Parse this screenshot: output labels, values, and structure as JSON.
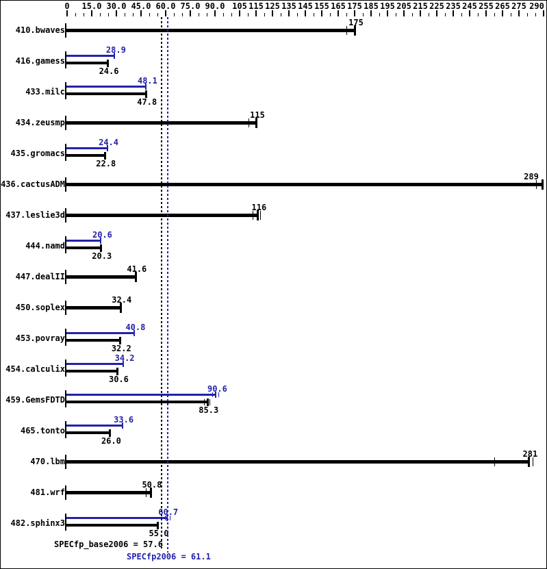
{
  "chart_data": {
    "type": "bar",
    "orientation": "horizontal",
    "title": "",
    "xlabel": "",
    "ylabel": "",
    "xlim": [
      0,
      290
    ],
    "grid": false,
    "colors": {
      "base": "#000000",
      "peak": "#2222aa",
      "background": "#ffffff"
    },
    "axis": {
      "minor_step": 5,
      "ticks": [
        {
          "value": 0,
          "label": "0"
        },
        {
          "value": 15,
          "label": "15.0"
        },
        {
          "value": 30,
          "label": "30.0"
        },
        {
          "value": 45,
          "label": "45.0"
        },
        {
          "value": 60,
          "label": "60.0"
        },
        {
          "value": 75,
          "label": "75.0"
        },
        {
          "value": 90,
          "label": "90.0"
        },
        {
          "value": 105,
          "label": "105"
        },
        {
          "value": 115,
          "label": "115"
        },
        {
          "value": 125,
          "label": "125"
        },
        {
          "value": 135,
          "label": "135"
        },
        {
          "value": 145,
          "label": "145"
        },
        {
          "value": 155,
          "label": "155"
        },
        {
          "value": 165,
          "label": "165"
        },
        {
          "value": 175,
          "label": "175"
        },
        {
          "value": 185,
          "label": "185"
        },
        {
          "value": 195,
          "label": "195"
        },
        {
          "value": 205,
          "label": "205"
        },
        {
          "value": 215,
          "label": "215"
        },
        {
          "value": 225,
          "label": "225"
        },
        {
          "value": 235,
          "label": "235"
        },
        {
          "value": 245,
          "label": "245"
        },
        {
          "value": 255,
          "label": "255"
        },
        {
          "value": 265,
          "label": "265"
        },
        {
          "value": 275,
          "label": "275"
        },
        {
          "value": 290,
          "label": "290"
        }
      ]
    },
    "benchmarks": [
      {
        "name": "410.bwaves",
        "peak": null,
        "base": {
          "value": 175,
          "label": "175",
          "marks": [
            170
          ]
        }
      },
      {
        "name": "416.gamess",
        "peak": {
          "value": 28.9,
          "label": "28.9",
          "marks": []
        },
        "base": {
          "value": 24.6,
          "label": "24.6",
          "marks": []
        }
      },
      {
        "name": "433.milc",
        "peak": {
          "value": 48.1,
          "label": "48.1",
          "marks": []
        },
        "base": {
          "value": 47.8,
          "label": "47.8",
          "marks": []
        }
      },
      {
        "name": "434.zeusmp",
        "peak": null,
        "base": {
          "value": 115,
          "label": "115",
          "marks": [
            110.5
          ]
        }
      },
      {
        "name": "435.gromacs",
        "peak": {
          "value": 24.4,
          "label": "24.4",
          "marks": []
        },
        "base": {
          "value": 22.8,
          "label": "22.8",
          "marks": []
        }
      },
      {
        "name": "436.cactusADM",
        "peak": null,
        "base": {
          "value": 289,
          "label": "289",
          "marks": [
            285.5
          ]
        }
      },
      {
        "name": "437.leslie3d",
        "peak": null,
        "base": {
          "value": 116,
          "label": "116",
          "marks": [
            113,
            117.5
          ]
        }
      },
      {
        "name": "444.namd",
        "peak": {
          "value": 20.6,
          "label": "20.6",
          "marks": []
        },
        "base": {
          "value": 20.3,
          "label": "20.3",
          "marks": []
        }
      },
      {
        "name": "447.dealII",
        "peak": null,
        "base": {
          "value": 41.6,
          "label": "41.6",
          "marks": []
        }
      },
      {
        "name": "450.soplex",
        "peak": null,
        "base": {
          "value": 32.4,
          "label": "32.4",
          "marks": []
        }
      },
      {
        "name": "453.povray",
        "peak": {
          "value": 40.8,
          "label": "40.8",
          "marks": []
        },
        "base": {
          "value": 32.2,
          "label": "32.2",
          "marks": []
        }
      },
      {
        "name": "454.calculix",
        "peak": {
          "value": 34.2,
          "label": "34.2",
          "marks": []
        },
        "base": {
          "value": 30.6,
          "label": "30.6",
          "marks": []
        }
      },
      {
        "name": "459.GemsFDTD",
        "peak": {
          "value": 90.6,
          "label": "90.6",
          "marks": [
            88.5,
            92
          ]
        },
        "base": {
          "value": 85.3,
          "label": "85.3",
          "marks": [
            83.5,
            86.5
          ]
        }
      },
      {
        "name": "465.tonto",
        "peak": {
          "value": 33.6,
          "label": "33.6",
          "marks": []
        },
        "base": {
          "value": 26.0,
          "label": "26.0",
          "marks": []
        }
      },
      {
        "name": "470.lbm",
        "peak": null,
        "base": {
          "value": 281,
          "label": "281",
          "marks": [
            260,
            283.5
          ]
        }
      },
      {
        "name": "481.wrf",
        "peak": null,
        "base": {
          "value": 50.8,
          "label": "50.8",
          "marks": [
            48
          ]
        }
      },
      {
        "name": "482.sphinx3",
        "peak": {
          "value": 60.7,
          "label": "60.7",
          "marks": [
            59.5,
            62.5
          ]
        },
        "base": {
          "value": 55.0,
          "label": "55.0",
          "marks": []
        }
      }
    ],
    "reference_lines": [
      {
        "name": "base-mean",
        "label": "SPECfp_base2006 = 57.6",
        "value": 57.6,
        "color": "#000000"
      },
      {
        "name": "peak-mean",
        "label": "SPECfp2006 = 61.1",
        "value": 61.1,
        "color": "#2222aa"
      }
    ]
  }
}
